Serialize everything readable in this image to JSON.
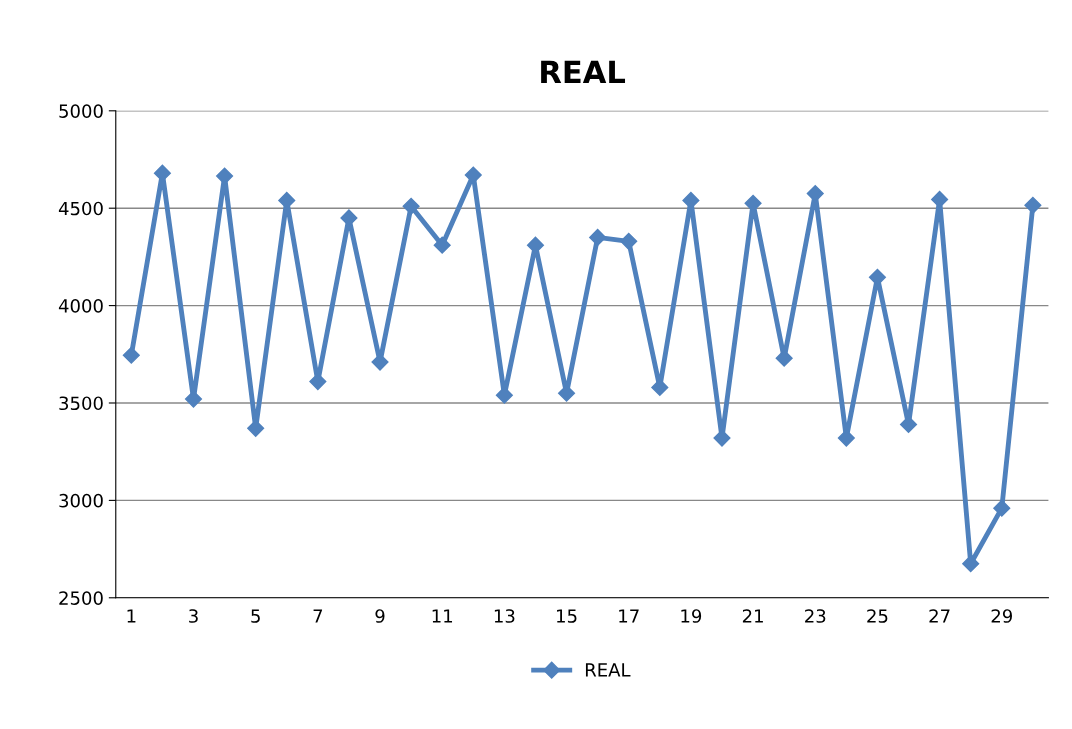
{
  "chart_data": {
    "type": "line",
    "title": "REAL",
    "categories": [
      "1",
      null,
      "3",
      null,
      "5",
      null,
      "7",
      null,
      "9",
      null,
      "11",
      null,
      "13",
      null,
      "15",
      null,
      "17",
      null,
      "19",
      null,
      "21",
      null,
      "23",
      null,
      "25",
      null,
      "27",
      null,
      "29",
      null
    ],
    "series": [
      {
        "name": "REAL",
        "color": "#4f81bd",
        "values": [
          3745,
          4680,
          3520,
          4665,
          3370,
          4540,
          3610,
          4450,
          3710,
          4510,
          4310,
          4670,
          3540,
          4310,
          3550,
          4350,
          4330,
          3580,
          4540,
          3320,
          4525,
          3730,
          4575,
          3320,
          4145,
          3390,
          4545,
          2675,
          2960,
          4515
        ]
      }
    ],
    "ylim": [
      2500,
      5000
    ],
    "yticks": [
      2500,
      3000,
      3500,
      4000,
      4500,
      5000
    ],
    "grid": "y",
    "legend": "bottom",
    "marker": "diamond",
    "line_style": "solid"
  }
}
